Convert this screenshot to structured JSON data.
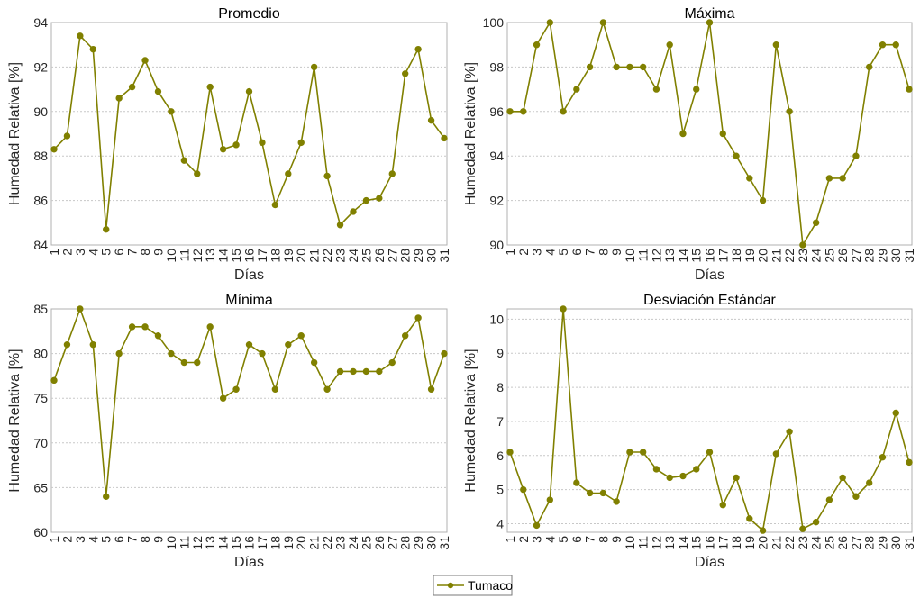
{
  "chart_data": [
    {
      "type": "line",
      "title": "Promedio",
      "xlabel": "Días",
      "ylabel": "Humedad Relativa [%]",
      "x": [
        1,
        2,
        3,
        4,
        5,
        6,
        7,
        8,
        9,
        10,
        11,
        12,
        13,
        14,
        15,
        16,
        17,
        18,
        19,
        20,
        21,
        22,
        23,
        24,
        25,
        26,
        27,
        28,
        29,
        30,
        31
      ],
      "ylim": [
        84,
        94
      ],
      "yticks": [
        84,
        86,
        88,
        90,
        92,
        94
      ],
      "grid": true,
      "series": [
        {
          "name": "Tumaco",
          "values": [
            88.3,
            88.9,
            93.4,
            92.8,
            84.7,
            90.6,
            91.1,
            92.3,
            90.9,
            90.0,
            87.8,
            87.2,
            91.1,
            88.3,
            88.5,
            90.9,
            88.6,
            85.8,
            87.2,
            88.6,
            92.0,
            87.1,
            84.9,
            85.5,
            86.0,
            86.1,
            87.2,
            91.7,
            92.8,
            89.6,
            88.8
          ]
        }
      ]
    },
    {
      "type": "line",
      "title": "Máxima",
      "xlabel": "Días",
      "ylabel": "Humedad Relativa [%]",
      "x": [
        1,
        2,
        3,
        4,
        5,
        6,
        7,
        8,
        9,
        10,
        11,
        12,
        13,
        14,
        15,
        16,
        17,
        18,
        19,
        20,
        21,
        22,
        23,
        24,
        25,
        26,
        27,
        28,
        29,
        30,
        31
      ],
      "ylim": [
        90,
        100
      ],
      "yticks": [
        90,
        92,
        94,
        96,
        98,
        100
      ],
      "grid": true,
      "series": [
        {
          "name": "Tumaco",
          "values": [
            96,
            96,
            99,
            100,
            96,
            97,
            98,
            100,
            98,
            98,
            98,
            97,
            99,
            95,
            97,
            100,
            95,
            94,
            93,
            92,
            99,
            96,
            90,
            91,
            93,
            93,
            94,
            98,
            99,
            99,
            97
          ]
        }
      ]
    },
    {
      "type": "line",
      "title": "Mínima",
      "xlabel": "Días",
      "ylabel": "Humedad Relativa [%]",
      "x": [
        1,
        2,
        3,
        4,
        5,
        6,
        7,
        8,
        9,
        10,
        11,
        12,
        13,
        14,
        15,
        16,
        17,
        18,
        19,
        20,
        21,
        22,
        23,
        24,
        25,
        26,
        27,
        28,
        29,
        30,
        31
      ],
      "ylim": [
        60,
        85
      ],
      "yticks": [
        60,
        65,
        70,
        75,
        80,
        85
      ],
      "grid": true,
      "series": [
        {
          "name": "Tumaco",
          "values": [
            77,
            81,
            85,
            81,
            64,
            80,
            83,
            83,
            82,
            80,
            79,
            79,
            83,
            75,
            76,
            81,
            80,
            76,
            81,
            82,
            79,
            76,
            78,
            78,
            78,
            78,
            79,
            82,
            84,
            76,
            80
          ]
        }
      ]
    },
    {
      "type": "line",
      "title": "Desviación Estándar",
      "xlabel": "Días",
      "ylabel": "Humedad Relativa [%]",
      "x": [
        1,
        2,
        3,
        4,
        5,
        6,
        7,
        8,
        9,
        10,
        11,
        12,
        13,
        14,
        15,
        16,
        17,
        18,
        19,
        20,
        21,
        22,
        23,
        24,
        25,
        26,
        27,
        28,
        29,
        30,
        31
      ],
      "ylim": [
        3.75,
        10.3
      ],
      "yticks": [
        4,
        5,
        6,
        7,
        8,
        9,
        10
      ],
      "grid": true,
      "series": [
        {
          "name": "Tumaco",
          "values": [
            6.1,
            5.0,
            3.95,
            4.7,
            10.3,
            5.2,
            4.9,
            4.9,
            4.65,
            6.1,
            6.1,
            5.6,
            5.35,
            5.4,
            5.6,
            6.1,
            4.55,
            5.35,
            4.15,
            3.8,
            6.05,
            6.7,
            3.85,
            4.05,
            4.7,
            5.35,
            4.8,
            5.2,
            5.95,
            7.25,
            5.8
          ]
        }
      ]
    }
  ],
  "legend": {
    "label": "Tumaco",
    "placement": "bottom-center"
  },
  "colors": {
    "series": "#808000",
    "marker": "#808000"
  }
}
